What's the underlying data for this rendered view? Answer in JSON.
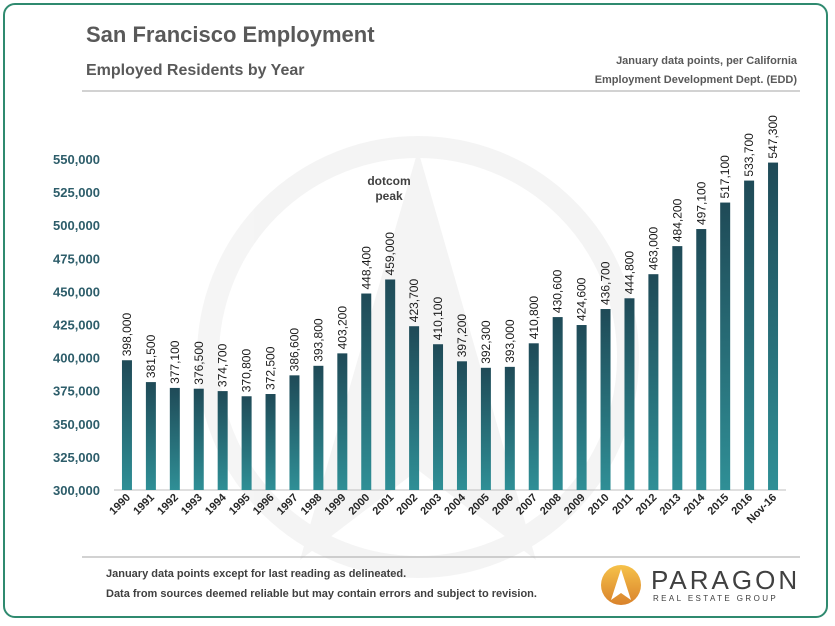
{
  "header": {
    "title": "San Francisco Employment",
    "subtitle": "Employed Residents by Year",
    "note_line1": "January data points, per California",
    "note_line2": "Employment Development Dept. (EDD)"
  },
  "footer": {
    "line1": "January data points except for last reading as delineated.",
    "line2": "Data from sources deemed reliable but may contain errors and subject to revision."
  },
  "logo": {
    "name": "PARAGON",
    "tagline": "REAL ESTATE GROUP"
  },
  "colors": {
    "bar_top": "#1f4a57",
    "bar_bottom": "#2f8f96",
    "axis_text": "#2d5d6a",
    "frame": "#2f8a6f"
  },
  "chart_data": {
    "type": "bar",
    "title": "San Francisco Employment",
    "subtitle": "Employed Residents by Year",
    "xlabel": "",
    "ylabel": "",
    "ylim": [
      300000,
      550000
    ],
    "yticks": [
      "300,000",
      "325,000",
      "350,000",
      "375,000",
      "400,000",
      "425,000",
      "450,000",
      "475,000",
      "500,000",
      "525,000",
      "550,000"
    ],
    "categories": [
      "1990",
      "1991",
      "1992",
      "1993",
      "1994",
      "1995",
      "1996",
      "1997",
      "1998",
      "1999",
      "2000",
      "2001",
      "2002",
      "2003",
      "2004",
      "2005",
      "2006",
      "2007",
      "2008",
      "2009",
      "2010",
      "2011",
      "2012",
      "2013",
      "2014",
      "2015",
      "2016",
      "Nov-16"
    ],
    "values": [
      398000,
      381500,
      377100,
      376500,
      374700,
      370800,
      372500,
      386600,
      393800,
      403200,
      448400,
      459000,
      423700,
      410100,
      397200,
      392300,
      393000,
      410800,
      430600,
      424600,
      436700,
      444800,
      463000,
      484200,
      497100,
      517100,
      533700,
      547300
    ],
    "labels": [
      "398,000",
      "381,500",
      "377,100",
      "376,500",
      "374,700",
      "370,800",
      "372,500",
      "386,600",
      "393,800",
      "403,200",
      "448,400",
      "459,000",
      "423,700",
      "410,100",
      "397,200",
      "392,300",
      "393,000",
      "410,800",
      "430,600",
      "424,600",
      "436,700",
      "444,800",
      "463,000",
      "484,200",
      "497,100",
      "517,100",
      "533,700",
      "547,300"
    ],
    "annotation": {
      "line1": "dotcom",
      "line2": "peak"
    }
  }
}
